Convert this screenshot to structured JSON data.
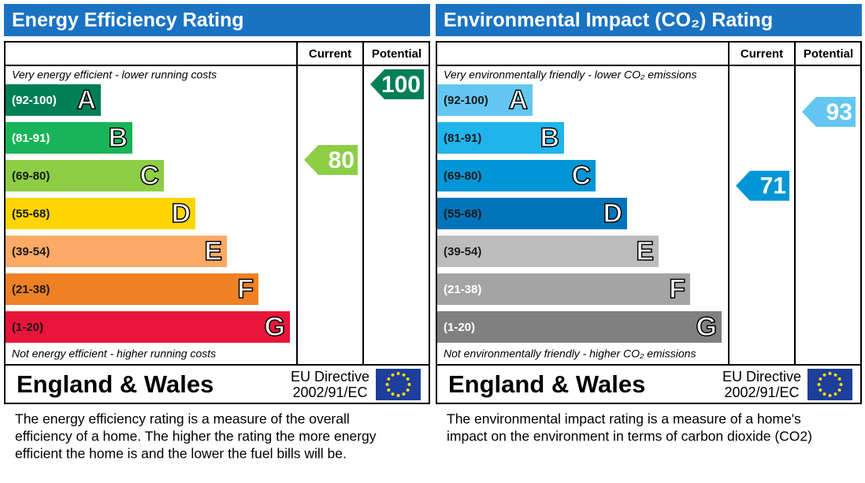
{
  "chart_data": [
    {
      "type": "epc",
      "title": "Energy Efficiency Rating",
      "columns": [
        "Current",
        "Potential"
      ],
      "top_note": "Very energy efficient - lower running costs",
      "bottom_note": "Not energy efficient - higher running costs",
      "bands": [
        {
          "letter": "A",
          "label": "(92-100)",
          "range": [
            92,
            100
          ],
          "color": "#008054",
          "text_color": "#ffffff"
        },
        {
          "letter": "B",
          "label": "(81-91)",
          "range": [
            81,
            91
          ],
          "color": "#19b459",
          "text_color": "#ffffff"
        },
        {
          "letter": "C",
          "label": "(69-80)",
          "range": [
            69,
            80
          ],
          "color": "#8dce46",
          "text_color": "#1a1a1a"
        },
        {
          "letter": "D",
          "label": "(55-68)",
          "range": [
            55,
            68
          ],
          "color": "#ffd500",
          "text_color": "#1a1a1a"
        },
        {
          "letter": "E",
          "label": "(39-54)",
          "range": [
            39,
            54
          ],
          "color": "#fcaa65",
          "text_color": "#1a1a1a"
        },
        {
          "letter": "F",
          "label": "(21-38)",
          "range": [
            21,
            38
          ],
          "color": "#ef8023",
          "text_color": "#1a1a1a"
        },
        {
          "letter": "G",
          "label": "(1-20)",
          "range": [
            1,
            20
          ],
          "color": "#e9153b",
          "text_color": "#1a1a1a"
        }
      ],
      "current": 80,
      "potential": 100,
      "region": "England & Wales",
      "directive": [
        "EU Directive",
        "2002/91/EC"
      ],
      "description": [
        "The energy efficiency rating is a measure of the overall",
        "efficiency of a home.  The higher the rating the more energy",
        "efficient the home is and the lower the fuel bills will be."
      ]
    },
    {
      "type": "epc",
      "title": "Environmental Impact (CO₂) Rating",
      "columns": [
        "Current",
        "Potential"
      ],
      "top_note": "Very environmentally friendly - lower CO₂ emissions",
      "bottom_note": "Not environmentally friendly - higher CO₂ emissions",
      "bands": [
        {
          "letter": "A",
          "label": "(92-100)",
          "range": [
            92,
            100
          ],
          "color": "#63c7f2",
          "text_color": "#1a1a1a"
        },
        {
          "letter": "B",
          "label": "(81-91)",
          "range": [
            81,
            91
          ],
          "color": "#1fb4ec",
          "text_color": "#1a1a1a"
        },
        {
          "letter": "C",
          "label": "(69-80)",
          "range": [
            69,
            80
          ],
          "color": "#0095d6",
          "text_color": "#1a1a1a"
        },
        {
          "letter": "D",
          "label": "(55-68)",
          "range": [
            55,
            68
          ],
          "color": "#0074bb",
          "text_color": "#1a1a1a"
        },
        {
          "letter": "E",
          "label": "(39-54)",
          "range": [
            39,
            54
          ],
          "color": "#bcbcbc",
          "text_color": "#1a1a1a"
        },
        {
          "letter": "F",
          "label": "(21-38)",
          "range": [
            21,
            38
          ],
          "color": "#a4a4a4",
          "text_color": "#ffffff"
        },
        {
          "letter": "G",
          "label": "(1-20)",
          "range": [
            1,
            20
          ],
          "color": "#808080",
          "text_color": "#ffffff"
        }
      ],
      "current": 71,
      "potential": 93,
      "region": "England & Wales",
      "directive": [
        "EU Directive",
        "2002/91/EC"
      ],
      "description": [
        "The environmental impact rating is a measure of a home's",
        "impact on the environment in terms of carbon dioxide (CO2)"
      ]
    }
  ]
}
